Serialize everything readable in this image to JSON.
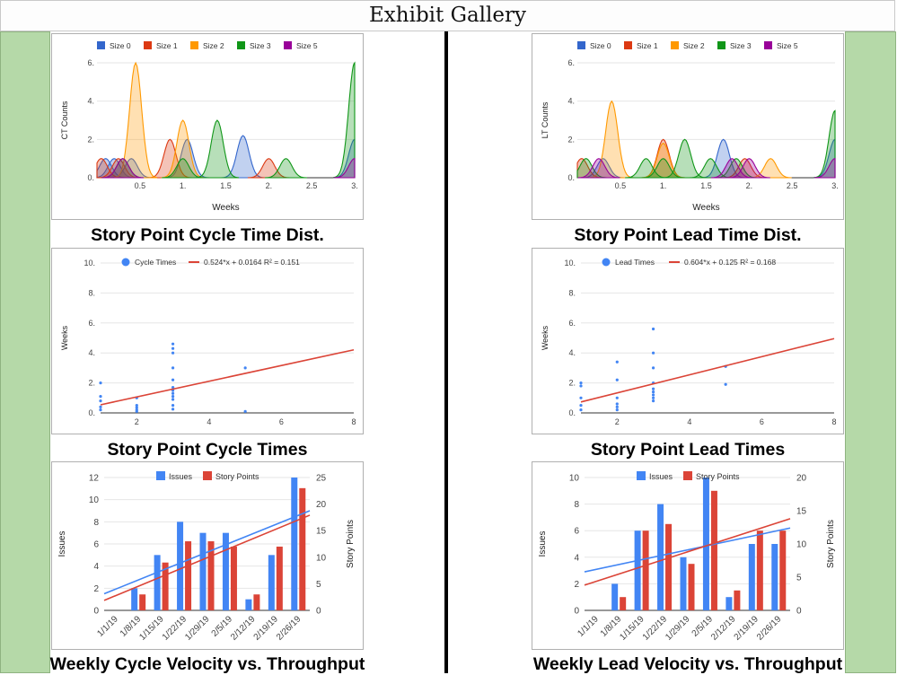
{
  "page": {
    "title": "Exhibit Gallery"
  },
  "colors": {
    "size0": "#3366cc",
    "size1": "#dc3912",
    "size2": "#ff9900",
    "size3": "#109618",
    "size5": "#990099",
    "blue": "#4285f4",
    "red": "#db4437"
  },
  "exhibits": [
    {
      "caption": "Story Point Cycle Time Dist."
    },
    {
      "caption": "Story Point Lead Time Dist."
    },
    {
      "caption": "Story Point Cycle Times"
    },
    {
      "caption": "Story Point Lead Times"
    },
    {
      "caption": "Weekly Cycle Velocity vs. Throughput"
    },
    {
      "caption": "Weekly Lead Velocity vs. Throughput"
    }
  ],
  "chart_data": [
    {
      "type": "area",
      "title": "",
      "xlabel": "Weeks",
      "ylabel": "CT Counts",
      "xlim": [
        0,
        3
      ],
      "ylim": [
        0,
        6
      ],
      "xticks": [
        "0.5",
        "1.",
        "1.5",
        "2.",
        "2.5",
        "3."
      ],
      "yticks": [
        "0.",
        "2.",
        "4.",
        "6."
      ],
      "legend_position": "top",
      "series": [
        {
          "name": "Size 0",
          "color": "#3366cc",
          "peaks": [
            [
              0.1,
              1
            ],
            [
              0.2,
              1
            ],
            [
              0.4,
              1
            ],
            [
              1.05,
              2
            ],
            [
              1.7,
              2.2
            ],
            [
              3,
              2
            ]
          ]
        },
        {
          "name": "Size 1",
          "color": "#dc3912",
          "peaks": [
            [
              0.05,
              1
            ],
            [
              0.25,
              1
            ],
            [
              0.85,
              2
            ],
            [
              2.0,
              1
            ]
          ]
        },
        {
          "name": "Size 2",
          "color": "#ff9900",
          "peaks": [
            [
              0.45,
              6
            ],
            [
              1.0,
              3
            ]
          ]
        },
        {
          "name": "Size 3",
          "color": "#109618",
          "peaks": [
            [
              0.3,
              1
            ],
            [
              1.0,
              1
            ],
            [
              1.4,
              3
            ],
            [
              2.2,
              1
            ],
            [
              3,
              6
            ]
          ]
        },
        {
          "name": "Size 5",
          "color": "#990099",
          "peaks": [
            [
              0.3,
              1
            ],
            [
              3,
              1
            ]
          ]
        }
      ]
    },
    {
      "type": "area",
      "title": "",
      "xlabel": "Weeks",
      "ylabel": "LT Counts",
      "xlim": [
        0,
        3
      ],
      "ylim": [
        0,
        6
      ],
      "xticks": [
        "0.5",
        "1.",
        "1.5",
        "2.",
        "2.5",
        "3."
      ],
      "yticks": [
        "0.",
        "2.",
        "4.",
        "6."
      ],
      "legend_position": "top",
      "series": [
        {
          "name": "Size 0",
          "color": "#3366cc",
          "peaks": [
            [
              0.3,
              1
            ],
            [
              1.7,
              2
            ],
            [
              3,
              2
            ]
          ]
        },
        {
          "name": "Size 1",
          "color": "#dc3912",
          "peaks": [
            [
              0.05,
              1
            ],
            [
              1.0,
              2
            ],
            [
              1.95,
              1
            ]
          ]
        },
        {
          "name": "Size 2",
          "color": "#ff9900",
          "peaks": [
            [
              0.4,
              4
            ],
            [
              1.0,
              1.8
            ],
            [
              2.25,
              1
            ]
          ]
        },
        {
          "name": "Size 3",
          "color": "#109618",
          "peaks": [
            [
              0.1,
              1
            ],
            [
              0.8,
              1
            ],
            [
              1.0,
              1
            ],
            [
              1.25,
              2
            ],
            [
              1.55,
              1
            ],
            [
              1.85,
              1
            ],
            [
              3,
              3.5
            ]
          ]
        },
        {
          "name": "Size 5",
          "color": "#990099",
          "peaks": [
            [
              0.25,
              1
            ],
            [
              1.8,
              1
            ],
            [
              2.0,
              1
            ],
            [
              3,
              1
            ]
          ]
        }
      ]
    },
    {
      "type": "scatter",
      "title": "",
      "xlabel": "",
      "ylabel": "Weeks",
      "xlim": [
        1,
        8
      ],
      "ylim": [
        0,
        10
      ],
      "xticks": [
        "2",
        "4",
        "6",
        "8"
      ],
      "yticks": [
        "0.",
        "2.",
        "4.",
        "6.",
        "8.",
        "10."
      ],
      "legend_position": "top",
      "points_name": "Cycle Times",
      "trend_name": "0.524*x + 0.0164 R² = 0.151",
      "trend": {
        "slope": 0.524,
        "intercept": 0.0164
      },
      "points": [
        [
          1,
          2
        ],
        [
          1,
          1.1
        ],
        [
          1,
          0.8
        ],
        [
          1,
          0.4
        ],
        [
          1,
          0.2
        ],
        [
          2,
          1
        ],
        [
          2,
          0.5
        ],
        [
          2,
          0.35
        ],
        [
          2,
          0.2
        ],
        [
          2,
          0.1
        ],
        [
          3,
          4.6
        ],
        [
          3,
          4.3
        ],
        [
          3,
          4
        ],
        [
          3,
          3
        ],
        [
          3,
          2.2
        ],
        [
          3,
          1.7
        ],
        [
          3,
          1.5
        ],
        [
          3,
          1.3
        ],
        [
          3,
          1.1
        ],
        [
          3,
          0.9
        ],
        [
          3,
          0.5
        ],
        [
          3,
          0.25
        ],
        [
          5,
          3
        ],
        [
          5,
          0.1
        ]
      ]
    },
    {
      "type": "scatter",
      "title": "",
      "xlabel": "",
      "ylabel": "Weeks",
      "xlim": [
        1,
        8
      ],
      "ylim": [
        0,
        10
      ],
      "xticks": [
        "2",
        "4",
        "6",
        "8"
      ],
      "yticks": [
        "0.",
        "2.",
        "4.",
        "6.",
        "8.",
        "10."
      ],
      "legend_position": "top",
      "points_name": "Lead Times",
      "trend_name": "0.604*x + 0.125 R² = 0.168",
      "trend": {
        "slope": 0.604,
        "intercept": 0.125
      },
      "points": [
        [
          1,
          2
        ],
        [
          1,
          1.8
        ],
        [
          1,
          1
        ],
        [
          1,
          0.5
        ],
        [
          1,
          0.2
        ],
        [
          2,
          3.4
        ],
        [
          2,
          2.2
        ],
        [
          2,
          1
        ],
        [
          2,
          0.6
        ],
        [
          2,
          0.4
        ],
        [
          2,
          0.2
        ],
        [
          3,
          5.6
        ],
        [
          3,
          4
        ],
        [
          3,
          3
        ],
        [
          3,
          2
        ],
        [
          3,
          1.6
        ],
        [
          3,
          1.4
        ],
        [
          3,
          1.2
        ],
        [
          3,
          1
        ],
        [
          3,
          0.8
        ],
        [
          5,
          3.1
        ],
        [
          5,
          1.9
        ]
      ]
    },
    {
      "type": "bar",
      "title": "",
      "xlabel": "",
      "ylabel": "Issues",
      "y2label": "Story Points",
      "categories": [
        "1/1/19",
        "1/8/19",
        "1/15/19",
        "1/22/19",
        "1/29/19",
        "2/5/19",
        "2/12/19",
        "2/19/19",
        "2/26/19"
      ],
      "ylim": [
        0,
        12
      ],
      "y2lim": [
        0,
        25
      ],
      "yticks": [
        "0",
        "2",
        "4",
        "6",
        "8",
        "10",
        "12"
      ],
      "y2ticks": [
        "0",
        "5",
        "10",
        "15",
        "20",
        "25"
      ],
      "legend_position": "top",
      "series": [
        {
          "name": "Issues",
          "axis": "left",
          "color": "#4285f4",
          "values": [
            0,
            2,
            5,
            8,
            7,
            7,
            1,
            5,
            12
          ]
        },
        {
          "name": "Story Points",
          "axis": "right",
          "color": "#db4437",
          "values": [
            0,
            3,
            9,
            13,
            13,
            12,
            3,
            12,
            23
          ]
        }
      ],
      "trends": [
        {
          "axis": "left",
          "color": "#4285f4",
          "start": 1.5,
          "end": 9
        },
        {
          "axis": "left",
          "color": "#db4437",
          "start": 0.9,
          "end": 8.6
        }
      ]
    },
    {
      "type": "bar",
      "title": "",
      "xlabel": "",
      "ylabel": "Issues",
      "y2label": "Story Points",
      "categories": [
        "1/1/19",
        "1/8/19",
        "1/15/19",
        "1/22/19",
        "1/29/19",
        "2/5/19",
        "2/12/19",
        "2/19/19",
        "2/26/19"
      ],
      "ylim": [
        0,
        10
      ],
      "y2lim": [
        0,
        20
      ],
      "yticks": [
        "0",
        "2",
        "4",
        "6",
        "8",
        "10"
      ],
      "y2ticks": [
        "0",
        "5",
        "10",
        "15",
        "20"
      ],
      "legend_position": "top",
      "series": [
        {
          "name": "Issues",
          "axis": "left",
          "color": "#4285f4",
          "values": [
            0,
            2,
            6,
            8,
            4,
            10,
            1,
            5,
            5
          ]
        },
        {
          "name": "Story Points",
          "axis": "right",
          "color": "#db4437",
          "values": [
            0,
            2,
            12,
            13,
            7,
            18,
            3,
            12,
            12
          ]
        }
      ],
      "trends": [
        {
          "axis": "left",
          "color": "#4285f4",
          "start": 2.9,
          "end": 6.2
        },
        {
          "axis": "left",
          "color": "#db4437",
          "start": 1.9,
          "end": 6.9
        }
      ]
    }
  ]
}
